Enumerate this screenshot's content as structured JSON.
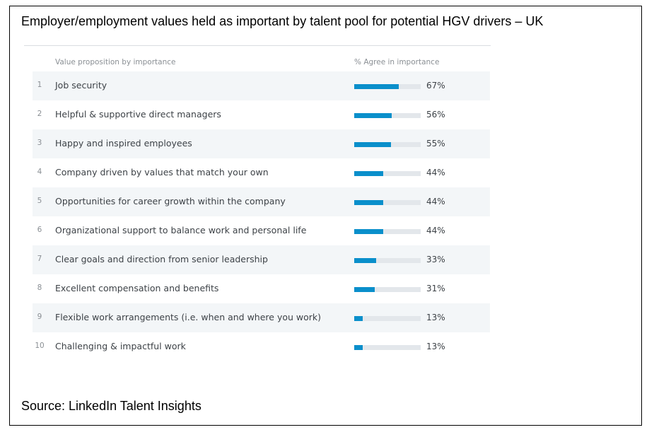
{
  "title": "Employer/employment values held as important by talent pool for potential HGV drivers – UK",
  "source": "Source: LinkedIn Talent Insights",
  "table_header": {
    "label_column": "Value proposition by importance",
    "pct_column": "% Agree in importance"
  },
  "colors": {
    "bar_fill": "#0a8fcb",
    "bar_track": "#e3e7eb",
    "row_shade": "#f3f6f8"
  },
  "chart_data": {
    "type": "bar",
    "orientation": "horizontal",
    "title": "Employer/employment values held as important by talent pool for potential HGV drivers – UK",
    "ylabel": "Value proposition by importance",
    "xlabel": "% Agree in importance",
    "xlim": [
      0,
      100
    ],
    "grid": false,
    "rows": [
      {
        "rank": "1",
        "label": "Job security",
        "value": 67,
        "value_label": "67%"
      },
      {
        "rank": "2",
        "label": "Helpful & supportive direct managers",
        "value": 56,
        "value_label": "56%"
      },
      {
        "rank": "3",
        "label": "Happy and inspired employees",
        "value": 55,
        "value_label": "55%"
      },
      {
        "rank": "4",
        "label": "Company driven by values that match your own",
        "value": 44,
        "value_label": "44%"
      },
      {
        "rank": "5",
        "label": "Opportunities for career growth within the company",
        "value": 44,
        "value_label": "44%"
      },
      {
        "rank": "6",
        "label": "Organizational support to balance work and personal life",
        "value": 44,
        "value_label": "44%"
      },
      {
        "rank": "7",
        "label": "Clear goals and direction from senior leadership",
        "value": 33,
        "value_label": "33%"
      },
      {
        "rank": "8",
        "label": "Excellent compensation and benefits",
        "value": 31,
        "value_label": "31%"
      },
      {
        "rank": "9",
        "label": "Flexible work arrangements (i.e. when and where you work)",
        "value": 13,
        "value_label": "13%"
      },
      {
        "rank": "10",
        "label": "Challenging & impactful work",
        "value": 13,
        "value_label": "13%"
      }
    ]
  }
}
